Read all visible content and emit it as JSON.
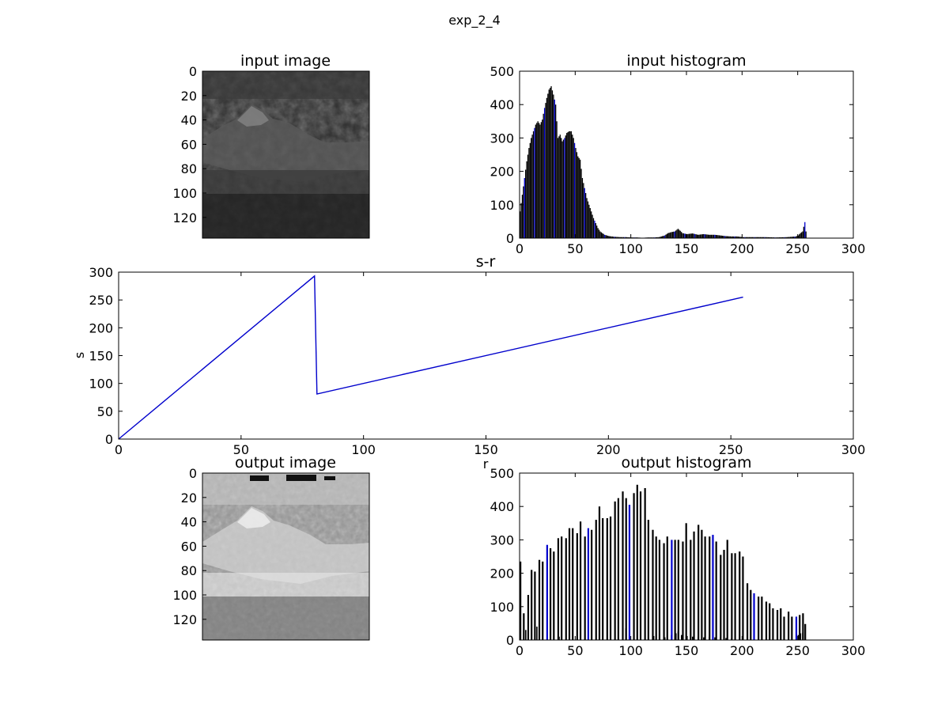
{
  "figure": {
    "suptitle": "exp_2_4",
    "background": "#ffffff",
    "line_color": "#0000cc",
    "bar_color": "#000000"
  },
  "chart_data": [
    {
      "type": "image",
      "title": "input image",
      "xlabel": "",
      "ylabel": "",
      "y_ticks": [
        0,
        20,
        40,
        60,
        80,
        100,
        120
      ],
      "image_size": [
        137,
        137
      ],
      "tone": "dark grayscale mountain landscape"
    },
    {
      "type": "bar",
      "title": "input histogram",
      "xlabel": "",
      "ylabel": "",
      "xlim": [
        0,
        300
      ],
      "ylim": [
        0,
        500
      ],
      "x_ticks": [
        0,
        50,
        100,
        150,
        200,
        250,
        300
      ],
      "y_ticks": [
        0,
        100,
        200,
        300,
        400,
        500
      ],
      "curve_points": [
        [
          0,
          80
        ],
        [
          2,
          130
        ],
        [
          4,
          180
        ],
        [
          6,
          230
        ],
        [
          8,
          270
        ],
        [
          10,
          300
        ],
        [
          12,
          320
        ],
        [
          14,
          340
        ],
        [
          16,
          350
        ],
        [
          18,
          340
        ],
        [
          20,
          355
        ],
        [
          22,
          390
        ],
        [
          24,
          420
        ],
        [
          26,
          445
        ],
        [
          28,
          455
        ],
        [
          30,
          430
        ],
        [
          32,
          400
        ],
        [
          34,
          300
        ],
        [
          36,
          310
        ],
        [
          38,
          290
        ],
        [
          40,
          300
        ],
        [
          42,
          315
        ],
        [
          44,
          320
        ],
        [
          46,
          320
        ],
        [
          48,
          300
        ],
        [
          50,
          270
        ],
        [
          52,
          245
        ],
        [
          54,
          235
        ],
        [
          56,
          180
        ],
        [
          58,
          150
        ],
        [
          60,
          120
        ],
        [
          62,
          100
        ],
        [
          64,
          80
        ],
        [
          66,
          60
        ],
        [
          68,
          45
        ],
        [
          70,
          30
        ],
        [
          72,
          20
        ],
        [
          74,
          15
        ],
        [
          76,
          10
        ],
        [
          80,
          6
        ],
        [
          85,
          4
        ],
        [
          90,
          3
        ],
        [
          95,
          3
        ],
        [
          100,
          2
        ],
        [
          105,
          2
        ],
        [
          110,
          1
        ],
        [
          115,
          2
        ],
        [
          120,
          2
        ],
        [
          125,
          3
        ],
        [
          130,
          8
        ],
        [
          133,
          15
        ],
        [
          136,
          18
        ],
        [
          139,
          20
        ],
        [
          142,
          28
        ],
        [
          144,
          22
        ],
        [
          146,
          15
        ],
        [
          150,
          12
        ],
        [
          155,
          14
        ],
        [
          160,
          10
        ],
        [
          165,
          12
        ],
        [
          170,
          10
        ],
        [
          175,
          10
        ],
        [
          180,
          8
        ],
        [
          185,
          6
        ],
        [
          190,
          5
        ],
        [
          195,
          5
        ],
        [
          200,
          3
        ],
        [
          210,
          3
        ],
        [
          220,
          3
        ],
        [
          230,
          2
        ],
        [
          240,
          3
        ],
        [
          248,
          5
        ],
        [
          250,
          8
        ],
        [
          252,
          15
        ],
        [
          254,
          20
        ],
        [
          256,
          48
        ],
        [
          257,
          20
        ]
      ]
    },
    {
      "type": "line",
      "title": "s-r",
      "xlabel": "r",
      "ylabel": "s",
      "xlim": [
        0,
        300
      ],
      "ylim": [
        0,
        300
      ],
      "x_ticks": [
        0,
        50,
        100,
        150,
        200,
        250,
        300
      ],
      "y_ticks": [
        0,
        50,
        100,
        150,
        200,
        250,
        300
      ],
      "series": [
        {
          "x": [
            0,
            80,
            81,
            255
          ],
          "y": [
            0,
            293,
            81,
            255
          ]
        }
      ]
    },
    {
      "type": "image",
      "title": "output image",
      "xlabel": "",
      "ylabel": "",
      "y_ticks": [
        0,
        20,
        40,
        60,
        80,
        100,
        120
      ],
      "image_size": [
        137,
        137
      ],
      "tone": "high-contrast grayscale mountain landscape"
    },
    {
      "type": "bar",
      "title": "output histogram",
      "xlabel": "",
      "ylabel": "",
      "xlim": [
        0,
        300
      ],
      "ylim": [
        0,
        500
      ],
      "x_ticks": [
        0,
        50,
        100,
        150,
        200,
        250,
        300
      ],
      "y_ticks": [
        0,
        100,
        200,
        300,
        400,
        500
      ],
      "bars": [
        [
          0,
          235
        ],
        [
          3,
          80
        ],
        [
          7,
          135
        ],
        [
          10,
          210
        ],
        [
          13,
          205
        ],
        [
          17,
          240
        ],
        [
          20,
          235
        ],
        [
          24,
          285
        ],
        [
          27,
          275
        ],
        [
          30,
          265
        ],
        [
          34,
          305
        ],
        [
          37,
          310
        ],
        [
          41,
          305
        ],
        [
          44,
          335
        ],
        [
          47,
          335
        ],
        [
          51,
          320
        ],
        [
          54,
          355
        ],
        [
          58,
          310
        ],
        [
          61,
          335
        ],
        [
          64,
          330
        ],
        [
          68,
          360
        ],
        [
          71,
          400
        ],
        [
          74,
          365
        ],
        [
          78,
          365
        ],
        [
          81,
          370
        ],
        [
          85,
          415
        ],
        [
          88,
          425
        ],
        [
          92,
          445
        ],
        [
          95,
          425
        ],
        [
          98,
          405
        ],
        [
          102,
          440
        ],
        [
          105,
          465
        ],
        [
          108,
          445
        ],
        [
          112,
          455
        ],
        [
          115,
          360
        ],
        [
          119,
          330
        ],
        [
          122,
          310
        ],
        [
          125,
          300
        ],
        [
          129,
          290
        ],
        [
          132,
          310
        ],
        [
          136,
          300
        ],
        [
          139,
          300
        ],
        [
          142,
          300
        ],
        [
          146,
          295
        ],
        [
          149,
          350
        ],
        [
          153,
          300
        ],
        [
          156,
          325
        ],
        [
          160,
          345
        ],
        [
          163,
          330
        ],
        [
          166,
          310
        ],
        [
          170,
          310
        ],
        [
          173,
          315
        ],
        [
          176,
          295
        ],
        [
          180,
          255
        ],
        [
          183,
          270
        ],
        [
          186,
          300
        ],
        [
          190,
          260
        ],
        [
          193,
          260
        ],
        [
          197,
          265
        ],
        [
          200,
          250
        ],
        [
          204,
          170
        ],
        [
          207,
          150
        ],
        [
          210,
          140
        ],
        [
          214,
          130
        ],
        [
          217,
          130
        ],
        [
          221,
          115
        ],
        [
          224,
          110
        ],
        [
          227,
          95
        ],
        [
          231,
          90
        ],
        [
          234,
          95
        ],
        [
          237,
          70
        ],
        [
          241,
          85
        ],
        [
          244,
          70
        ],
        [
          248,
          70
        ],
        [
          251,
          75
        ],
        [
          254,
          80
        ],
        [
          256,
          48
        ]
      ],
      "small_bars": [
        [
          5,
          30
        ],
        [
          15,
          40
        ],
        [
          35,
          10
        ],
        [
          95,
          35
        ],
        [
          120,
          12
        ],
        [
          130,
          8
        ],
        [
          136,
          15
        ],
        [
          140,
          20
        ],
        [
          142,
          25
        ],
        [
          145,
          15
        ],
        [
          150,
          12
        ],
        [
          155,
          10
        ],
        [
          160,
          10
        ],
        [
          165,
          8
        ],
        [
          170,
          10
        ],
        [
          175,
          8
        ],
        [
          180,
          8
        ],
        [
          185,
          6
        ],
        [
          190,
          5
        ],
        [
          250,
          15
        ],
        [
          252,
          20
        ],
        [
          254,
          22
        ]
      ]
    }
  ]
}
